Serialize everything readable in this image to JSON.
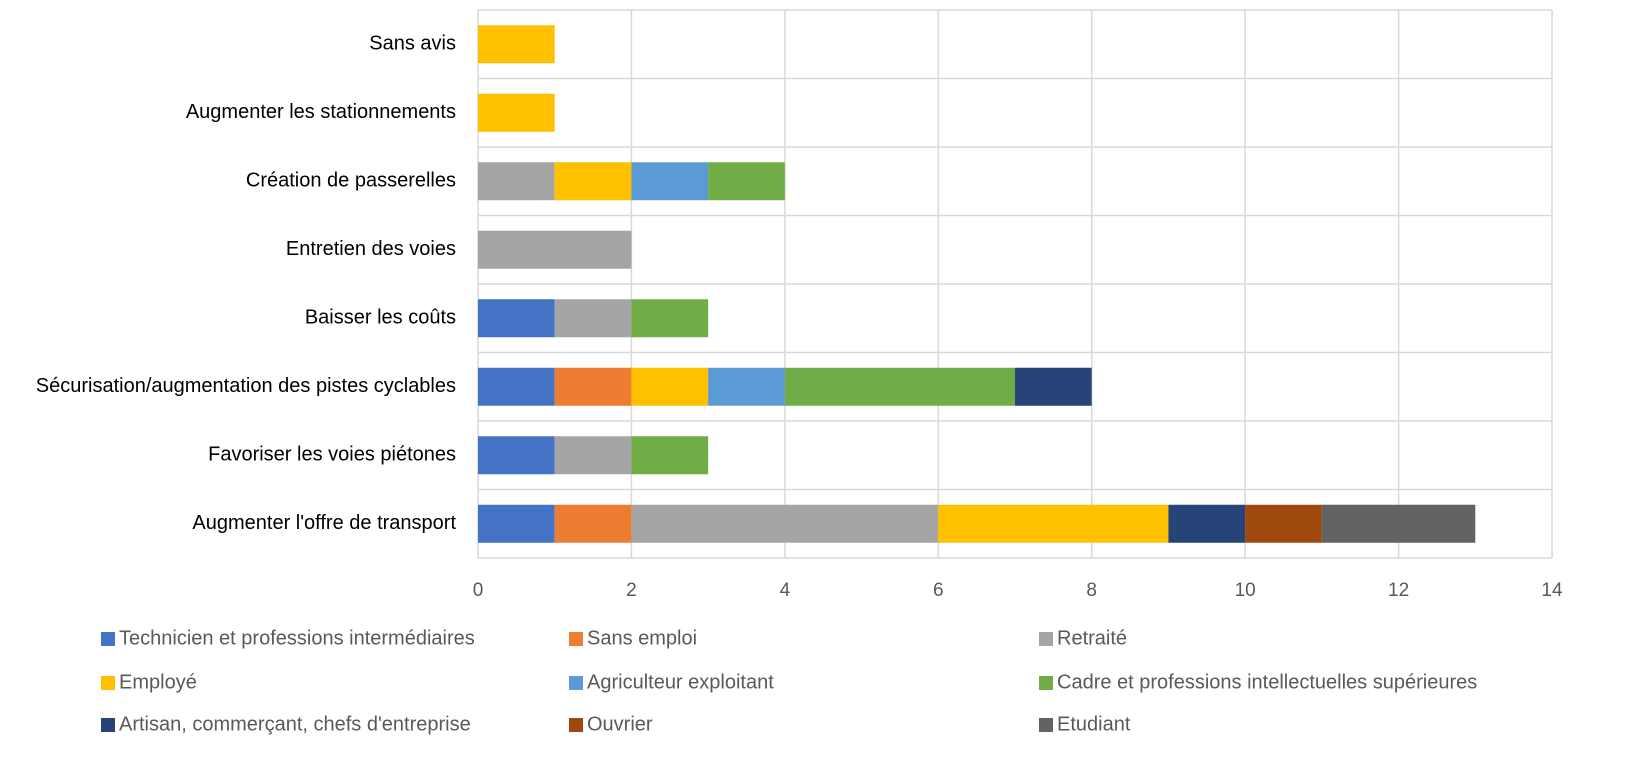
{
  "chart_data": {
    "type": "bar",
    "orientation": "horizontal",
    "stacked": true,
    "categories": [
      "Augmenter l'offre de transport",
      "Favoriser les voies piétones",
      "Sécurisation/augmentation des pistes cyclables",
      "Baisser les coûts",
      "Entretien des voies",
      "Création de passerelles",
      "Augmenter les stationnements",
      "Sans avis"
    ],
    "series": [
      {
        "name": "Technicien et professions intermédiaires",
        "color": "#4472C4",
        "values": [
          1,
          1,
          1,
          1,
          0,
          0,
          0,
          0
        ]
      },
      {
        "name": "Sans emploi",
        "color": "#ED7D31",
        "values": [
          1,
          0,
          1,
          0,
          0,
          0,
          0,
          0
        ]
      },
      {
        "name": "Retraité",
        "color": "#A5A5A5",
        "values": [
          4,
          1,
          0,
          1,
          2,
          1,
          0,
          0
        ]
      },
      {
        "name": "Employé",
        "color": "#FFC000",
        "values": [
          3,
          0,
          1,
          0,
          0,
          1,
          1,
          1
        ]
      },
      {
        "name": "Agriculteur exploitant",
        "color": "#5B9BD5",
        "values": [
          0,
          0,
          1,
          0,
          0,
          1,
          0,
          0
        ]
      },
      {
        "name": "Cadre et professions intellectuelles supérieures",
        "color": "#70AD47",
        "values": [
          0,
          1,
          3,
          1,
          0,
          1,
          0,
          0
        ]
      },
      {
        "name": "Artisan, commerçant, chefs d'entreprise",
        "color": "#264478",
        "values": [
          1,
          0,
          1,
          0,
          0,
          0,
          0,
          0
        ]
      },
      {
        "name": "Ouvrier",
        "color": "#9E480E",
        "values": [
          1,
          0,
          0,
          0,
          0,
          0,
          0,
          0
        ]
      },
      {
        "name": "Etudiant",
        "color": "#636363",
        "values": [
          2,
          0,
          0,
          0,
          0,
          0,
          0,
          0
        ]
      }
    ],
    "xlim": [
      0,
      14
    ],
    "xticks": [
      "0",
      "2",
      "4",
      "6",
      "8",
      "10",
      "12",
      "14"
    ],
    "grid": true,
    "legend_position": "bottom",
    "title": "",
    "xlabel": "",
    "ylabel": ""
  }
}
